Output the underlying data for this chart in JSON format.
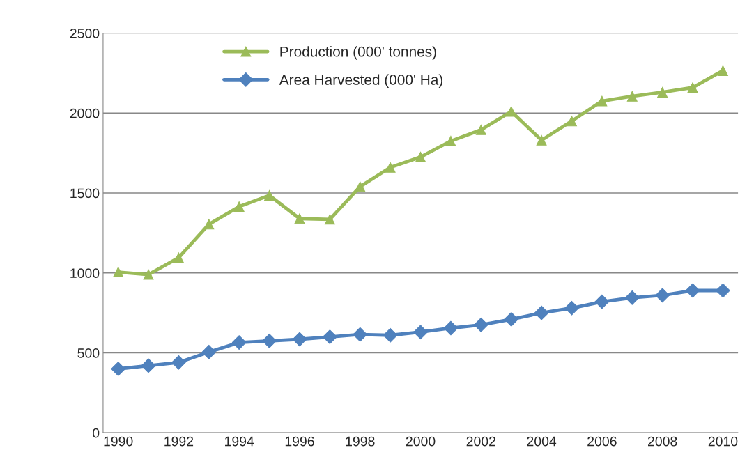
{
  "chart_data": {
    "type": "line",
    "categories": [
      "1990",
      null,
      "1992",
      null,
      "1994",
      null,
      "1996",
      null,
      "1998",
      null,
      "2000",
      null,
      "2002",
      null,
      "2004",
      null,
      "2006",
      null,
      "2008",
      null,
      "2010"
    ],
    "series": [
      {
        "name": "Production (000' tonnes)",
        "color": "#9bbb59",
        "marker": "triangle",
        "values": [
          1005,
          990,
          1095,
          1305,
          1415,
          1485,
          1340,
          1335,
          1540,
          1660,
          1725,
          1825,
          1895,
          2010,
          1830,
          1950,
          2075,
          2105,
          2130,
          2160,
          2265
        ]
      },
      {
        "name": "Area Harvested (000' Ha)",
        "color": "#4f81bd",
        "marker": "diamond",
        "values": [
          400,
          420,
          440,
          505,
          565,
          575,
          585,
          600,
          615,
          610,
          630,
          655,
          675,
          710,
          750,
          780,
          820,
          845,
          860,
          890,
          890
        ]
      }
    ],
    "ylim": [
      0,
      2500
    ],
    "yticks": [
      0,
      500,
      1000,
      1500,
      2000,
      2500
    ],
    "grid": "y",
    "legend": "top left",
    "line_style": "solid"
  }
}
